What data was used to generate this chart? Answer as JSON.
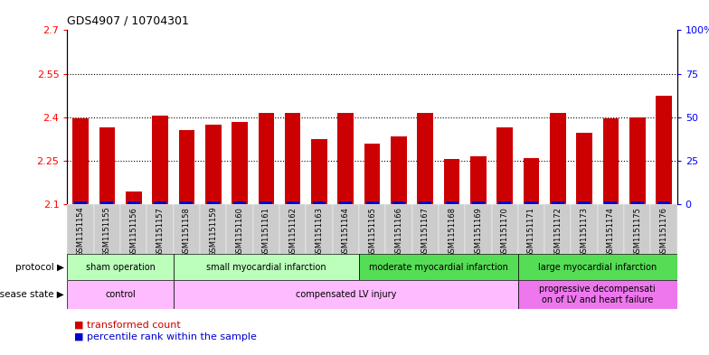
{
  "title": "GDS4907 / 10704301",
  "samples": [
    "GSM1151154",
    "GSM1151155",
    "GSM1151156",
    "GSM1151157",
    "GSM1151158",
    "GSM1151159",
    "GSM1151160",
    "GSM1151161",
    "GSM1151162",
    "GSM1151163",
    "GSM1151164",
    "GSM1151165",
    "GSM1151166",
    "GSM1151167",
    "GSM1151168",
    "GSM1151169",
    "GSM1151170",
    "GSM1151171",
    "GSM1151172",
    "GSM1151173",
    "GSM1151174",
    "GSM1151175",
    "GSM1151176"
  ],
  "bar_values": [
    2.395,
    2.365,
    2.145,
    2.405,
    2.355,
    2.375,
    2.385,
    2.415,
    2.415,
    2.325,
    2.415,
    2.31,
    2.335,
    2.415,
    2.255,
    2.265,
    2.365,
    2.26,
    2.415,
    2.345,
    2.395,
    2.4,
    2.475
  ],
  "bar_color": "#cc0000",
  "percentile_color": "#0000cc",
  "ylim": [
    2.1,
    2.7
  ],
  "yticks": [
    2.1,
    2.25,
    2.4,
    2.55,
    2.7
  ],
  "ytick_labels": [
    "2.1",
    "2.25",
    "2.4",
    "2.55",
    "2.7"
  ],
  "right_yticks": [
    0,
    25,
    50,
    75,
    100
  ],
  "right_ytick_labels": [
    "0",
    "25",
    "50",
    "75",
    "100%"
  ],
  "dotted_lines": [
    2.25,
    2.4,
    2.55
  ],
  "protocol_groups": [
    {
      "label": "sham operation",
      "start": 0,
      "end": 4,
      "color": "#bbffbb"
    },
    {
      "label": "small myocardial infarction",
      "start": 4,
      "end": 11,
      "color": "#bbffbb"
    },
    {
      "label": "moderate myocardial infarction",
      "start": 11,
      "end": 17,
      "color": "#55dd55"
    },
    {
      "label": "large myocardial infarction",
      "start": 17,
      "end": 23,
      "color": "#55dd55"
    }
  ],
  "disease_groups": [
    {
      "label": "control",
      "start": 0,
      "end": 4,
      "color": "#ffbbff"
    },
    {
      "label": "compensated LV injury",
      "start": 4,
      "end": 17,
      "color": "#ffbbff"
    },
    {
      "label": "progressive decompensati\non of LV and heart failure",
      "start": 17,
      "end": 23,
      "color": "#ee77ee"
    }
  ],
  "bg_color": "#ffffff",
  "bar_width": 0.6,
  "sample_box_color": "#cccccc",
  "legend_items": [
    {
      "label": "transformed count",
      "color": "#cc0000"
    },
    {
      "label": "percentile rank within the sample",
      "color": "#0000cc"
    }
  ]
}
